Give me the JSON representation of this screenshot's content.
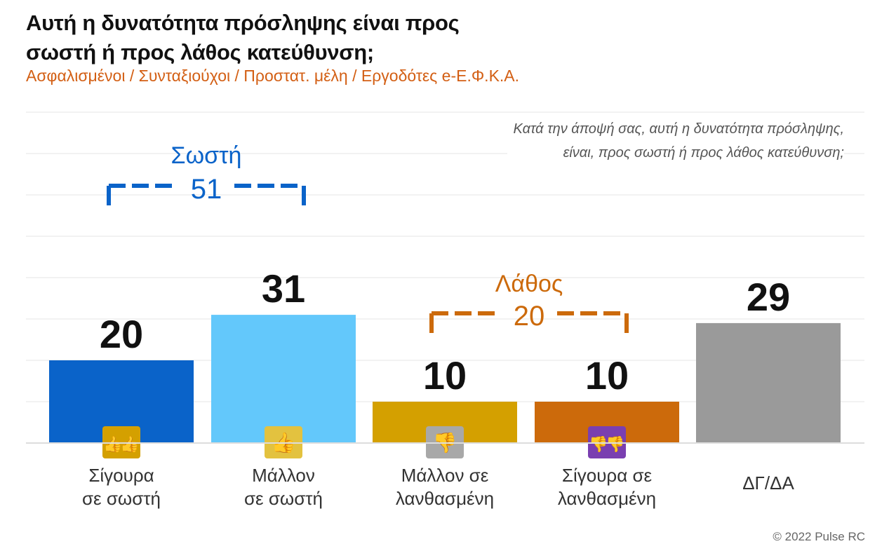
{
  "title_lines": [
    "Αυτή η δυνατότητα πρόσληψης είναι προς",
    "σωστή ή προς λάθος κατεύθυνση;"
  ],
  "subtitle": "Ασφαλισμένοι / Συνταξιούχοι / Προστατ. μέλη / Εργοδότες e-Ε.Φ.Κ.Α.",
  "question_lines": [
    "Κατά την άποψή σας, αυτή η δυνατότητα πρόσληψης,",
    "είναι, προς σωστή ή προς λάθος κατεύθυνση;"
  ],
  "copyright": "© 2022 Pulse RC",
  "colors": {
    "sure_right": "#0a63c9",
    "rather_right": "#63c8fb",
    "rather_wrong": "#d4a000",
    "sure_wrong": "#cc6a0b",
    "dk_na": "#9a9a9a",
    "right_group": "#0a63c9",
    "wrong_group": "#cc6a0b"
  },
  "chart_data": {
    "type": "bar",
    "categories": [
      [
        "Σίγουρα",
        "σε σωστή"
      ],
      [
        "Μάλλον",
        "σε σωστή"
      ],
      [
        "Μάλλον σε",
        "λανθασμένη"
      ],
      [
        "Σίγουρα σε",
        "λανθασμένη"
      ],
      [
        "ΔΓ/ΔΑ"
      ]
    ],
    "values": [
      20,
      31,
      10,
      10,
      29
    ],
    "value_labels": [
      "20",
      "31",
      "10",
      "10",
      "29"
    ],
    "bar_colors": [
      "#0a63c9",
      "#63c8fb",
      "#d4a000",
      "#cc6a0b",
      "#9a9a9a"
    ],
    "icons": [
      "double-thumbs-up-icon",
      "thumbs-up-icon",
      "thumbs-down-icon",
      "double-thumbs-down-icon",
      null
    ],
    "icon_colors": [
      "#d4a000",
      "#e3c23f",
      "#a8a8a8",
      "#7a3fb0",
      null
    ],
    "groups": [
      {
        "label": "Σωστή",
        "total": "51",
        "from": 0,
        "to": 1,
        "color": "#0a63c9"
      },
      {
        "label": "Λάθος",
        "total": "20",
        "from": 2,
        "to": 3,
        "color": "#cc6a0b"
      }
    ],
    "ylim": [
      0,
      80
    ],
    "grid": true,
    "xlabel": "",
    "ylabel": ""
  }
}
